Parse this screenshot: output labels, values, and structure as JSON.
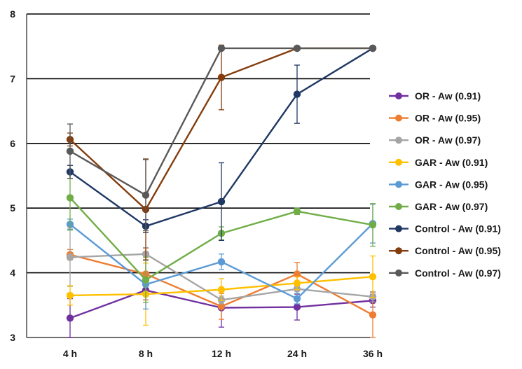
{
  "chart_data": {
    "type": "line",
    "title": "",
    "xlabel": "",
    "ylabel": "",
    "categories": [
      "4 h",
      "8 h",
      "12 h",
      "24 h",
      "36 h"
    ],
    "ylim": [
      3,
      8
    ],
    "yticks": [
      3,
      4,
      5,
      6,
      7,
      8
    ],
    "grid": "horizontal",
    "legend": "right",
    "series": [
      {
        "name": "OR - Aw (0.91)",
        "color": "#7030a0",
        "values": [
          3.3,
          3.73,
          3.46,
          3.47,
          3.57
        ],
        "errors": [
          0.3,
          0.15,
          0.3,
          0.2,
          0.1
        ]
      },
      {
        "name": "OR - Aw (0.95)",
        "color": "#ed7d31",
        "values": [
          4.28,
          3.98,
          3.48,
          3.98,
          3.35
        ],
        "errors": [
          0.08,
          0.4,
          0.2,
          0.18,
          0.35
        ]
      },
      {
        "name": "OR - Aw (0.97)",
        "color": "#a5a5a5",
        "values": [
          4.24,
          4.29,
          3.58,
          3.75,
          3.63
        ],
        "errors": [
          0.45,
          0.1,
          0.06,
          0.12,
          0.08
        ]
      },
      {
        "name": "GAR - Aw (0.91)",
        "color": "#ffc000",
        "values": [
          3.65,
          3.67,
          3.74,
          3.84,
          3.94
        ],
        "errors": [
          0.15,
          0.48,
          0.17,
          0.1,
          0.32
        ]
      },
      {
        "name": "GAR - Aw (0.95)",
        "color": "#5b9bd5",
        "values": [
          4.75,
          3.82,
          4.17,
          3.6,
          4.76
        ],
        "errors": [
          0.08,
          0.38,
          0.12,
          0.08,
          0.3
        ]
      },
      {
        "name": "GAR - Aw (0.97)",
        "color": "#70ad47",
        "values": [
          5.16,
          3.89,
          4.61,
          4.95,
          4.74
        ],
        "errors": [
          0.5,
          0.35,
          0.1,
          0.05,
          0.33
        ]
      },
      {
        "name": "Control - Aw (0.91)",
        "color": "#203864",
        "values": [
          5.56,
          4.72,
          5.1,
          6.76,
          7.47
        ],
        "errors": [
          0.1,
          0.1,
          0.6,
          0.45,
          0.0
        ]
      },
      {
        "name": "Control - Aw (0.95)",
        "color": "#843c0c",
        "values": [
          6.06,
          4.98,
          7.02,
          7.47,
          7.47
        ],
        "errors": [
          0.1,
          0.78,
          0.5,
          0.0,
          0.0
        ]
      },
      {
        "name": "Control - Aw (0.97)",
        "color": "#595959",
        "values": [
          5.88,
          5.2,
          7.47,
          7.47,
          7.47
        ],
        "errors": [
          0.42,
          0.55,
          0.0,
          0.0,
          0.0
        ]
      }
    ]
  }
}
